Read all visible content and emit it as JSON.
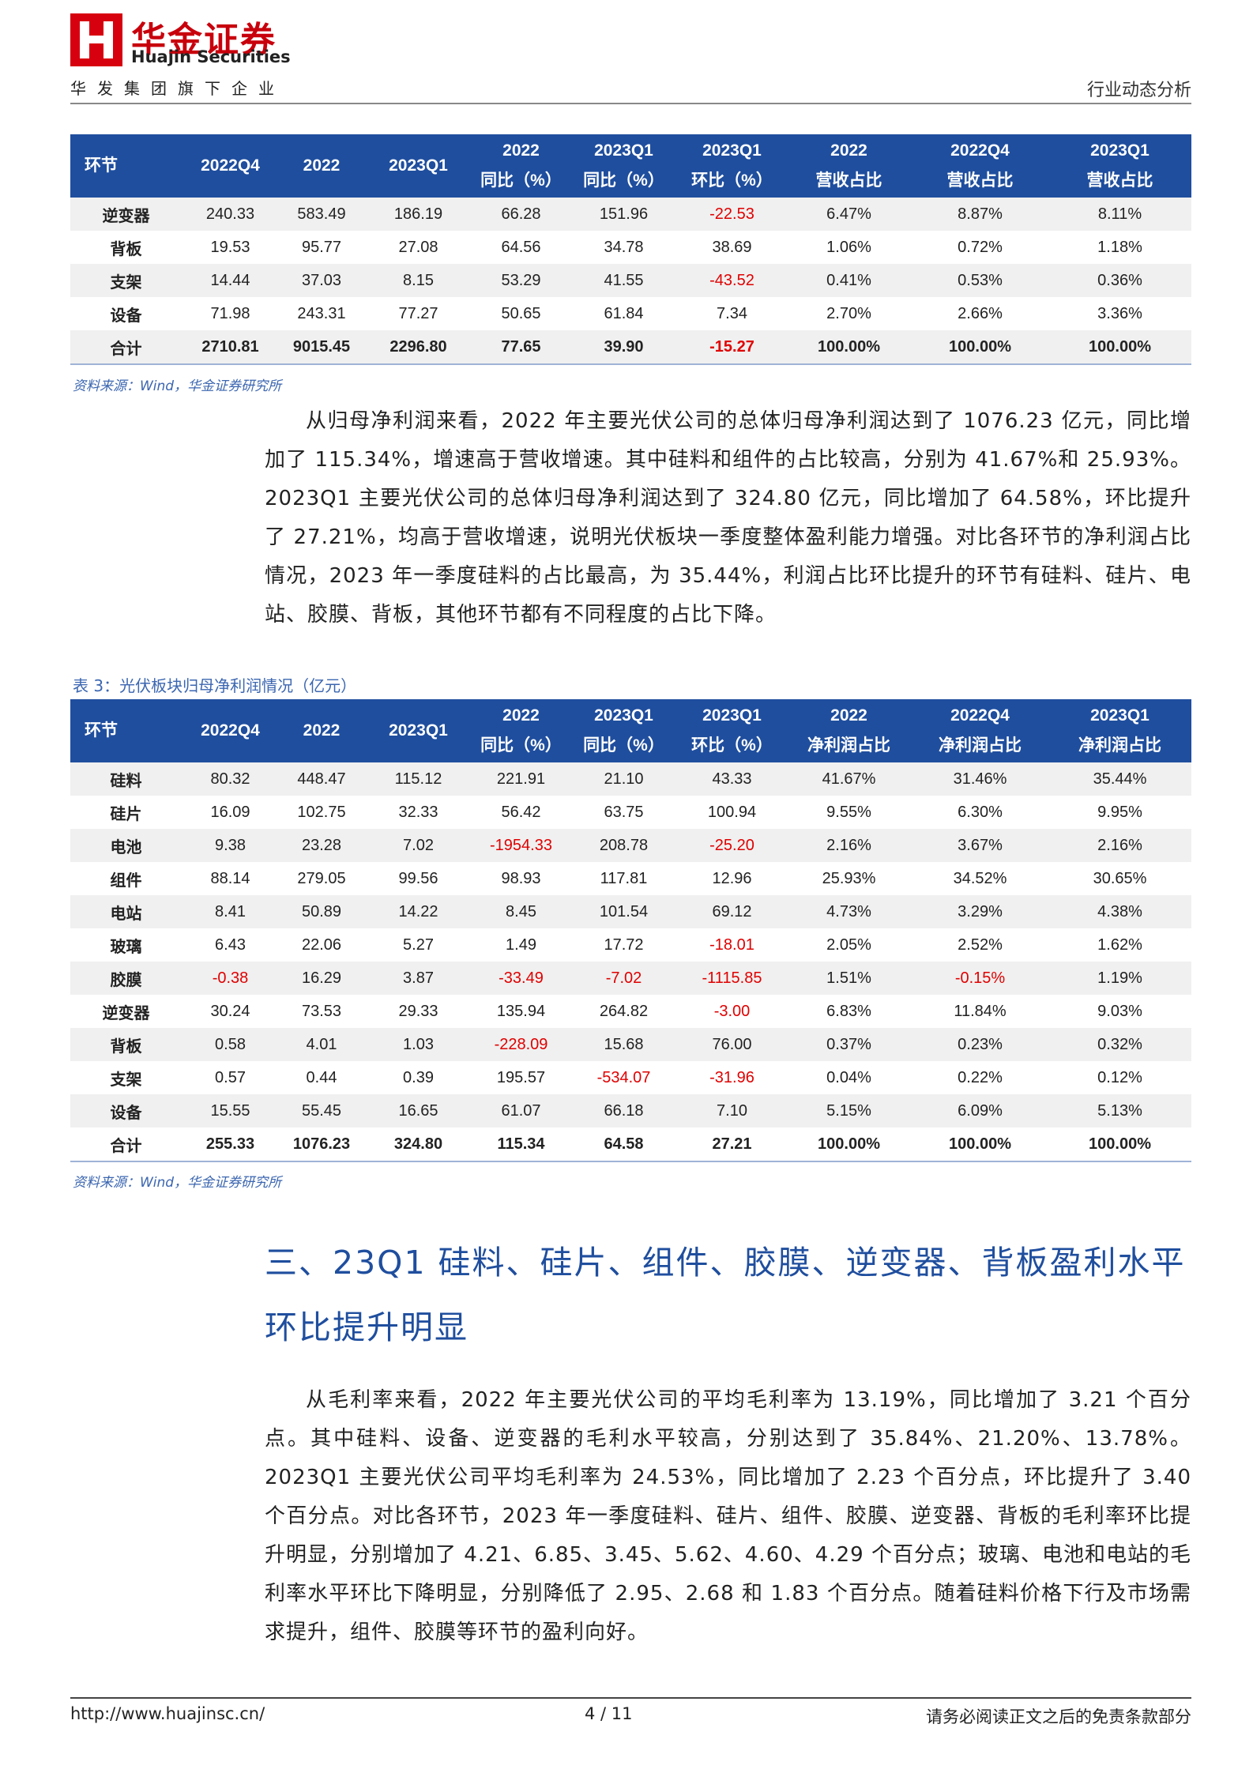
{
  "header": {
    "brand": "华金证券",
    "brand_en": "Huajin Securities",
    "group": "华发集团旗下企业",
    "report_type": "行业动态分析"
  },
  "table1": {
    "headers": [
      [
        "环节"
      ],
      [
        "2022Q4"
      ],
      [
        "2022"
      ],
      [
        "2023Q1"
      ],
      [
        "2022",
        "同比（%）"
      ],
      [
        "2023Q1",
        "同比（%）"
      ],
      [
        "2023Q1",
        "环比（%）"
      ],
      [
        "2022",
        "营收占比"
      ],
      [
        "2022Q4",
        "营收占比"
      ],
      [
        "2023Q1",
        "营收占比"
      ]
    ],
    "rows": [
      [
        "逆变器",
        "240.33",
        "583.49",
        "186.19",
        "66.28",
        "151.96",
        "-22.53",
        "6.47%",
        "8.87%",
        "8.11%"
      ],
      [
        "背板",
        "19.53",
        "95.77",
        "27.08",
        "64.56",
        "34.78",
        "38.69",
        "1.06%",
        "0.72%",
        "1.18%"
      ],
      [
        "支架",
        "14.44",
        "37.03",
        "8.15",
        "53.29",
        "41.55",
        "-43.52",
        "0.41%",
        "0.53%",
        "0.36%"
      ],
      [
        "设备",
        "71.98",
        "243.31",
        "77.27",
        "50.65",
        "61.84",
        "7.34",
        "2.70%",
        "2.66%",
        "3.36%"
      ],
      [
        "合计",
        "2710.81",
        "9015.45",
        "2296.80",
        "77.65",
        "39.90",
        "-15.27",
        "100.00%",
        "100.00%",
        "100.00%"
      ]
    ],
    "source": "资料来源：Wind，华金证券研究所"
  },
  "paragraph1": "从归母净利润来看，2022 年主要光伏公司的总体归母净利润达到了 1076.23 亿元，同比增加了 115.34%，增速高于营收增速。其中硅料和组件的占比较高，分别为 41.67%和 25.93%。2023Q1 主要光伏公司的总体归母净利润达到了 324.80 亿元，同比增加了 64.58%，环比提升了 27.21%，均高于营收增速，说明光伏板块一季度整体盈利能力增强。对比各环节的净利润占比情况，2023 年一季度硅料的占比最高，为 35.44%，利润占比环比提升的环节有硅料、硅片、电站、胶膜、背板，其他环节都有不同程度的占比下降。",
  "table2": {
    "caption": "表 3：光伏板块归母净利润情况（亿元）",
    "headers": [
      [
        "环节"
      ],
      [
        "2022Q4"
      ],
      [
        "2022"
      ],
      [
        "2023Q1"
      ],
      [
        "2022",
        "同比（%）"
      ],
      [
        "2023Q1",
        "同比（%）"
      ],
      [
        "2023Q1",
        "环比（%）"
      ],
      [
        "2022",
        "净利润占比"
      ],
      [
        "2022Q4",
        "净利润占比"
      ],
      [
        "2023Q1",
        "净利润占比"
      ]
    ],
    "rows": [
      [
        "硅料",
        "80.32",
        "448.47",
        "115.12",
        "221.91",
        "21.10",
        "43.33",
        "41.67%",
        "31.46%",
        "35.44%"
      ],
      [
        "硅片",
        "16.09",
        "102.75",
        "32.33",
        "56.42",
        "63.75",
        "100.94",
        "9.55%",
        "6.30%",
        "9.95%"
      ],
      [
        "电池",
        "9.38",
        "23.28",
        "7.02",
        "-1954.33",
        "208.78",
        "-25.20",
        "2.16%",
        "3.67%",
        "2.16%"
      ],
      [
        "组件",
        "88.14",
        "279.05",
        "99.56",
        "98.93",
        "117.81",
        "12.96",
        "25.93%",
        "34.52%",
        "30.65%"
      ],
      [
        "电站",
        "8.41",
        "50.89",
        "14.22",
        "8.45",
        "101.54",
        "69.12",
        "4.73%",
        "3.29%",
        "4.38%"
      ],
      [
        "玻璃",
        "6.43",
        "22.06",
        "5.27",
        "1.49",
        "17.72",
        "-18.01",
        "2.05%",
        "2.52%",
        "1.62%"
      ],
      [
        "胶膜",
        "-0.38",
        "16.29",
        "3.87",
        "-33.49",
        "-7.02",
        "-1115.85",
        "1.51%",
        "-0.15%",
        "1.19%"
      ],
      [
        "逆变器",
        "30.24",
        "73.53",
        "29.33",
        "135.94",
        "264.82",
        "-3.00",
        "6.83%",
        "11.84%",
        "9.03%"
      ],
      [
        "背板",
        "0.58",
        "4.01",
        "1.03",
        "-228.09",
        "15.68",
        "76.00",
        "0.37%",
        "0.23%",
        "0.32%"
      ],
      [
        "支架",
        "0.57",
        "0.44",
        "0.39",
        "195.57",
        "-534.07",
        "-31.96",
        "0.04%",
        "0.22%",
        "0.12%"
      ],
      [
        "设备",
        "15.55",
        "55.45",
        "16.65",
        "61.07",
        "66.18",
        "7.10",
        "5.15%",
        "6.09%",
        "5.13%"
      ],
      [
        "合计",
        "255.33",
        "1076.23",
        "324.80",
        "115.34",
        "64.58",
        "27.21",
        "100.00%",
        "100.00%",
        "100.00%"
      ]
    ],
    "source": "资料来源：Wind，华金证券研究所"
  },
  "section": {
    "heading": "三、23Q1 硅料、硅片、组件、胶膜、逆变器、背板盈利水平环比提升明显",
    "paragraph": "从毛利率来看，2022 年主要光伏公司的平均毛利率为 13.19%，同比增加了 3.21 个百分点。其中硅料、设备、逆变器的毛利水平较高，分别达到了 35.84%、21.20%、13.78%。2023Q1 主要光伏公司平均毛利率为 24.53%，同比增加了 2.23 个百分点，环比提升了 3.40 个百分点。对比各环节，2023 年一季度硅料、硅片、组件、胶膜、逆变器、背板的毛利率环比提升明显，分别增加了 4.21、6.85、3.45、5.62、4.60、4.29 个百分点；玻璃、电池和电站的毛利率水平环比下降明显，分别降低了 2.95、2.68 和 1.83 个百分点。随着硅料价格下行及市场需求提升，组件、胶膜等环节的盈利向好。"
  },
  "footer": {
    "url": "http://www.huajinsc.cn/",
    "page": "4 / 11",
    "disclaimer": "请务必阅读正文之后的免责条款部分"
  }
}
